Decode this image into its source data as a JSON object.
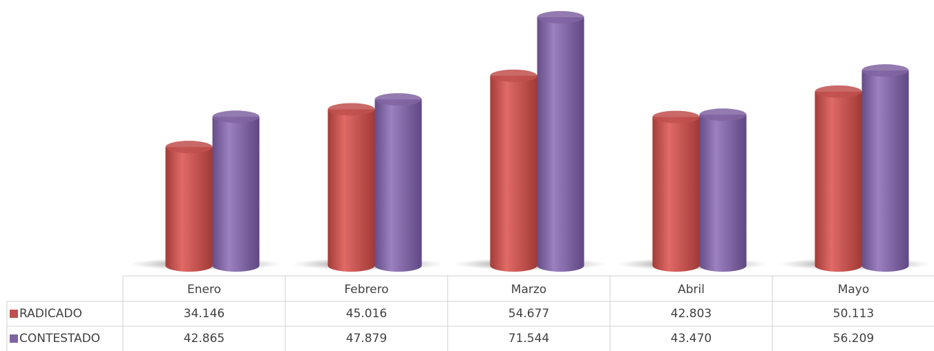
{
  "chart_data": {
    "type": "cylinder-bar",
    "categories": [
      "Enero",
      "Febrero",
      "Marzo",
      "Abril",
      "Mayo"
    ],
    "series": [
      {
        "name": "RADICADO",
        "color": "#c0504d",
        "values": [
          34146,
          45016,
          54677,
          42803,
          50113
        ],
        "value_labels": [
          "34.146",
          "45.016",
          "54.677",
          "42.803",
          "50.113"
        ]
      },
      {
        "name": "CONTESTADO",
        "color": "#8064a2",
        "values": [
          42865,
          47879,
          71544,
          43470,
          56209
        ],
        "value_labels": [
          "42.865",
          "47.879",
          "71.544",
          "43.470",
          "56.209"
        ]
      }
    ]
  }
}
